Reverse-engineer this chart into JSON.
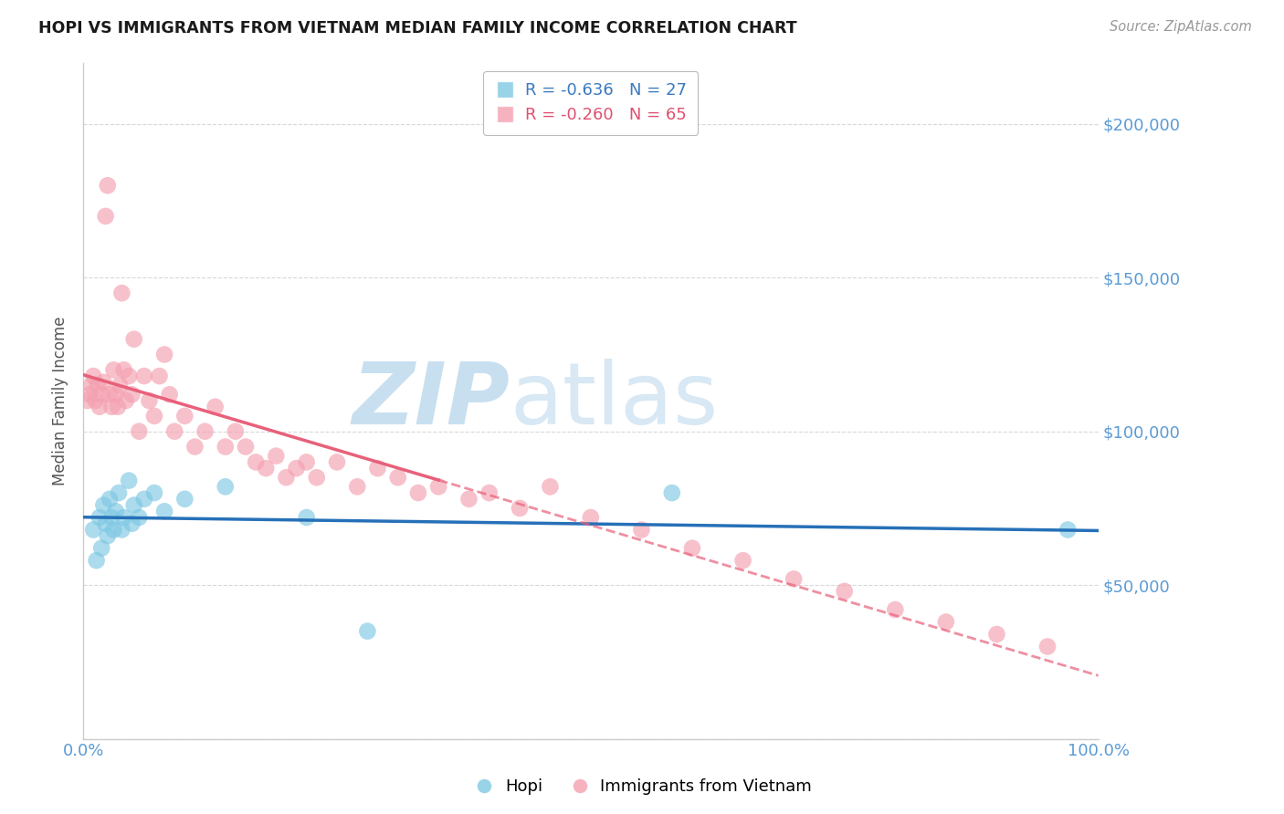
{
  "title": "HOPI VS IMMIGRANTS FROM VIETNAM MEDIAN FAMILY INCOME CORRELATION CHART",
  "source": "Source: ZipAtlas.com",
  "xlabel": "",
  "ylabel": "Median Family Income",
  "xmin": 0.0,
  "xmax": 100.0,
  "ymin": 0,
  "ymax": 220000,
  "yticks": [
    0,
    50000,
    100000,
    150000,
    200000
  ],
  "ytick_labels": [
    "",
    "$50,000",
    "$100,000",
    "$150,000",
    "$200,000"
  ],
  "xticks": [
    0,
    10,
    20,
    30,
    40,
    50,
    60,
    70,
    80,
    90,
    100
  ],
  "xtick_labels": [
    "0.0%",
    "",
    "",
    "",
    "",
    "",
    "",
    "",
    "",
    "",
    "100.0%"
  ],
  "hopi_color": "#7ec8e3",
  "vietnam_color": "#f4a0b0",
  "hopi_line_color": "#2670b8",
  "vietnam_line_color": "#e8607a",
  "hopi_R": "-0.636",
  "hopi_N": "27",
  "vietnam_R": "-0.260",
  "vietnam_N": "65",
  "legend_label1": "Hopi",
  "legend_label2": "Immigrants from Vietnam",
  "background_color": "#ffffff",
  "grid_color": "#d8d8d8",
  "title_color": "#1a1a1a",
  "ytick_color": "#5b9bd5",
  "xtick_color": "#5b9bd5",
  "axis_color": "#cccccc",
  "watermark_zip_color": "#c8dff0",
  "watermark_atlas_color": "#c8dff0",
  "hopi_x": [
    1.0,
    1.3,
    1.6,
    1.8,
    2.0,
    2.2,
    2.4,
    2.6,
    2.8,
    3.0,
    3.2,
    3.5,
    3.8,
    4.0,
    4.5,
    4.8,
    5.0,
    5.5,
    6.0,
    7.0,
    8.0,
    10.0,
    14.0,
    22.0,
    28.0,
    58.0,
    97.0
  ],
  "hopi_y": [
    68000,
    58000,
    72000,
    62000,
    76000,
    70000,
    66000,
    78000,
    72000,
    68000,
    74000,
    80000,
    68000,
    72000,
    84000,
    70000,
    76000,
    72000,
    78000,
    80000,
    74000,
    78000,
    82000,
    72000,
    35000,
    80000,
    68000
  ],
  "vietnam_x": [
    0.4,
    0.6,
    0.8,
    1.0,
    1.2,
    1.4,
    1.6,
    1.8,
    2.0,
    2.2,
    2.4,
    2.6,
    2.8,
    3.0,
    3.2,
    3.4,
    3.6,
    3.8,
    4.0,
    4.2,
    4.5,
    4.8,
    5.0,
    5.5,
    6.0,
    6.5,
    7.0,
    7.5,
    8.0,
    8.5,
    9.0,
    10.0,
    11.0,
    12.0,
    13.0,
    14.0,
    15.0,
    16.0,
    17.0,
    18.0,
    19.0,
    20.0,
    21.0,
    22.0,
    23.0,
    25.0,
    27.0,
    29.0,
    31.0,
    33.0,
    35.0,
    38.0,
    40.0,
    43.0,
    46.0,
    50.0,
    55.0,
    60.0,
    65.0,
    70.0,
    75.0,
    80.0,
    85.0,
    90.0,
    95.0
  ],
  "vietnam_y": [
    110000,
    112000,
    115000,
    118000,
    110000,
    115000,
    108000,
    112000,
    116000,
    170000,
    180000,
    112000,
    108000,
    120000,
    112000,
    108000,
    115000,
    145000,
    120000,
    110000,
    118000,
    112000,
    130000,
    100000,
    118000,
    110000,
    105000,
    118000,
    125000,
    112000,
    100000,
    105000,
    95000,
    100000,
    108000,
    95000,
    100000,
    95000,
    90000,
    88000,
    92000,
    85000,
    88000,
    90000,
    85000,
    90000,
    82000,
    88000,
    85000,
    80000,
    82000,
    78000,
    80000,
    75000,
    82000,
    72000,
    68000,
    62000,
    58000,
    52000,
    48000,
    42000,
    38000,
    34000,
    30000
  ]
}
